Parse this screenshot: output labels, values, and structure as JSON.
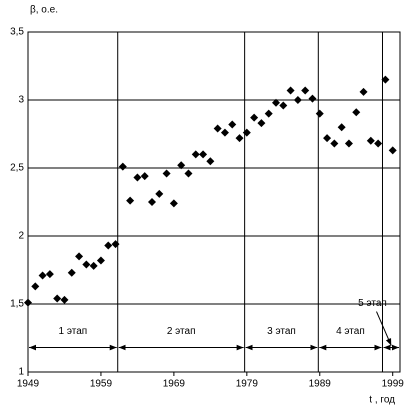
{
  "chart_data": {
    "type": "scatter",
    "y_label": "β, о.е.",
    "x_label": "t , год",
    "x": [
      1949,
      1950,
      1951,
      1952,
      1953,
      1954,
      1955,
      1956,
      1957,
      1958,
      1959,
      1960,
      1961,
      1962,
      1963,
      1964,
      1965,
      1966,
      1967,
      1968,
      1969,
      1970,
      1971,
      1972,
      1973,
      1974,
      1975,
      1976,
      1977,
      1978,
      1979,
      1980,
      1981,
      1982,
      1983,
      1984,
      1985,
      1986,
      1987,
      1988,
      1989,
      1990,
      1991,
      1992,
      1993,
      1994,
      1995,
      1996,
      1997,
      1998,
      1999
    ],
    "values": [
      1.51,
      1.63,
      1.71,
      1.72,
      1.54,
      1.53,
      1.73,
      1.85,
      1.79,
      1.78,
      1.82,
      1.93,
      1.94,
      2.51,
      2.26,
      2.43,
      2.44,
      2.25,
      2.31,
      2.46,
      2.24,
      2.52,
      2.46,
      2.6,
      2.6,
      2.55,
      2.79,
      2.76,
      2.82,
      2.72,
      2.76,
      2.87,
      2.83,
      2.9,
      2.98,
      2.96,
      3.07,
      3.0,
      3.07,
      3.01,
      2.9,
      2.72,
      2.68,
      2.8,
      2.68,
      2.91,
      3.06,
      2.7,
      2.68,
      3.15,
      2.63
    ],
    "color": "#000000",
    "xlim": [
      1949,
      2000
    ],
    "xticks": [
      1949,
      1959,
      1969,
      1979,
      1989,
      1999
    ],
    "ylim": [
      1,
      3.5
    ],
    "yticks": [
      1,
      {
        "value": 1.5,
        "label": "1,5"
      },
      2,
      {
        "value": 2.5,
        "label": "2,5"
      },
      3,
      {
        "value": 3.5,
        "label": "3,5"
      }
    ],
    "grid": true,
    "stages": [
      {
        "label": "1 этап",
        "start": 1949,
        "end": 1961.3
      },
      {
        "label": "2 этап",
        "start": 1961.3,
        "end": 1978.7
      },
      {
        "label": "3 этап",
        "start": 1978.7,
        "end": 1988.8
      },
      {
        "label": "4 этап",
        "start": 1988.8,
        "end": 1997.6
      },
      {
        "label": "5 этап",
        "start": 1997.6,
        "end": 2000
      }
    ]
  }
}
